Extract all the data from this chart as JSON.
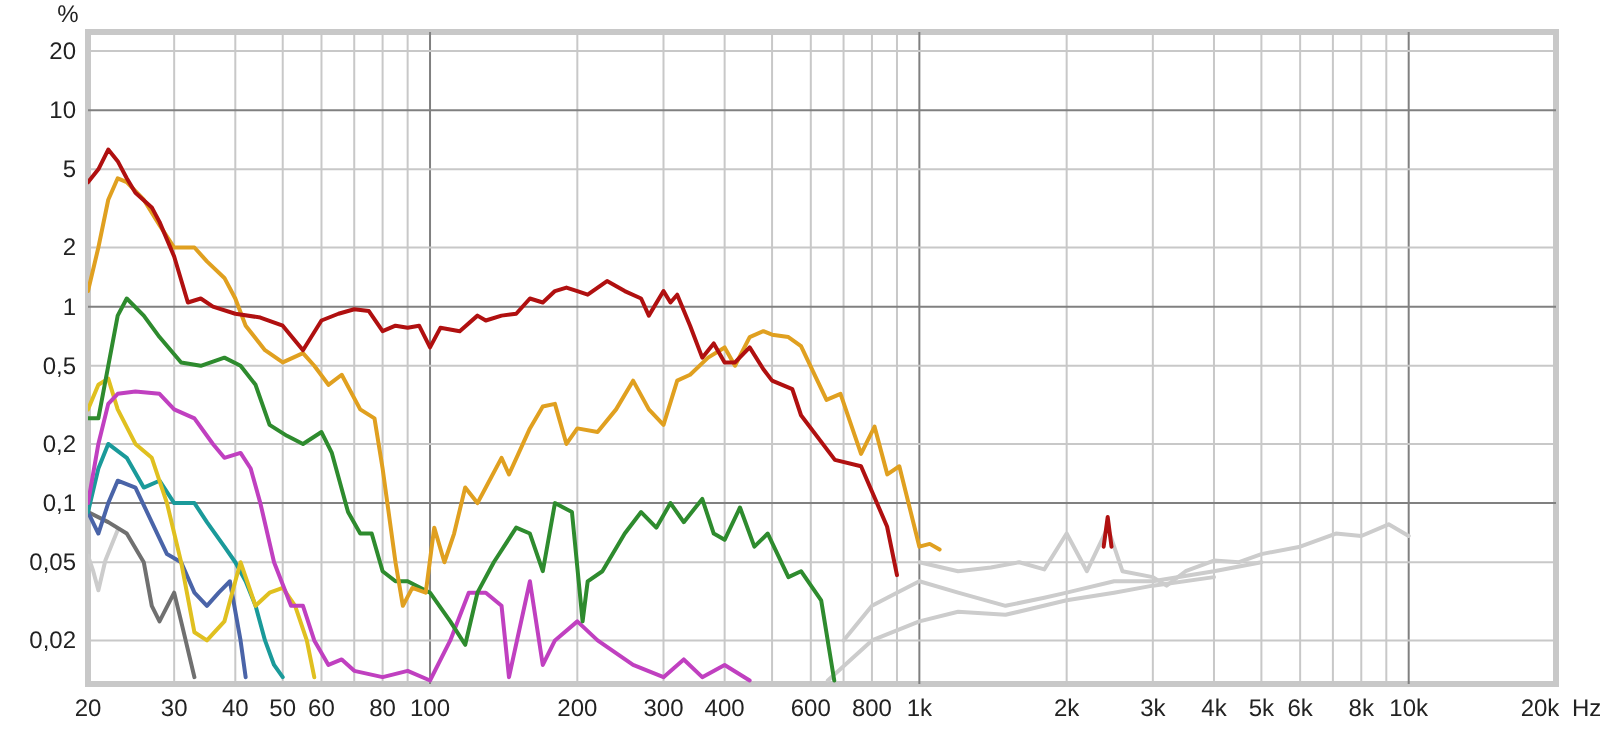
{
  "chart_data": {
    "type": "line",
    "ylabel": "%",
    "log": "xy",
    "grid": true,
    "xlabel": "Hz",
    "marker": "none",
    "line_style": "solid",
    "xlim": [
      20,
      20000
    ],
    "ylim": [
      0.012,
      25
    ],
    "xticks": [
      20,
      30,
      40,
      50,
      60,
      {
        "value": 70,
        "label": null
      },
      80,
      {
        "value": 90,
        "label": null
      },
      100,
      200,
      300,
      400,
      {
        "value": 500,
        "label": null
      },
      600,
      {
        "value": 700,
        "label": null
      },
      800,
      {
        "value": 900,
        "label": null
      },
      {
        "value": 1000,
        "label": "1k"
      },
      {
        "value": 2000,
        "label": "2k"
      },
      {
        "value": 3000,
        "label": "3k"
      },
      {
        "value": 4000,
        "label": "4k"
      },
      {
        "value": 5000,
        "label": "5k"
      },
      {
        "value": 6000,
        "label": "6k"
      },
      {
        "value": 7000,
        "label": null
      },
      {
        "value": 8000,
        "label": "8k"
      },
      {
        "value": 9000,
        "label": null
      },
      {
        "value": 10000,
        "label": "10k"
      },
      {
        "value": 20000,
        "label": "20k"
      }
    ],
    "yticks": [
      {
        "value": 0.02,
        "label": "0,02"
      },
      {
        "value": 0.05,
        "label": "0,05"
      },
      {
        "value": 0.1,
        "label": "0,1"
      },
      {
        "value": 0.2,
        "label": "0,2"
      },
      {
        "value": 0.5,
        "label": "0,5"
      },
      1,
      2,
      5,
      10,
      20
    ],
    "series": [
      {
        "color": "#cccccc",
        "x": [
          20,
          20.5,
          21,
          21.7,
          23
        ],
        "values": [
          0.054,
          0.045,
          0.036,
          0.051,
          0.073
        ]
      },
      {
        "color": "#cccccc",
        "x": [
          1000,
          1200,
          1400,
          1600,
          1800,
          2000,
          2200,
          2426,
          2600,
          3000,
          3200,
          3500,
          4000,
          4500,
          5000,
          6000,
          7100,
          8000,
          9100,
          10000
        ],
        "values": [
          0.05,
          0.045,
          0.047,
          0.05,
          0.046,
          0.07,
          0.045,
          0.075,
          0.045,
          0.042,
          0.038,
          0.045,
          0.051,
          0.05,
          0.055,
          0.06,
          0.07,
          0.068,
          0.078,
          0.068
        ]
      },
      {
        "color": "#cccccc",
        "x": [
          700,
          800,
          900,
          1000,
          1200,
          1500,
          1800,
          2000,
          2500,
          3000,
          4000,
          5000
        ],
        "values": [
          0.02,
          0.03,
          0.035,
          0.04,
          0.035,
          0.03,
          0.033,
          0.035,
          0.04,
          0.04,
          0.045,
          0.05
        ]
      },
      {
        "color": "#cccccc",
        "x": [
          650,
          800,
          1000,
          1200,
          1500,
          2000,
          2500,
          3000,
          4000
        ],
        "values": [
          0.0125,
          0.02,
          0.025,
          0.028,
          0.027,
          0.032,
          0.035,
          0.038,
          0.042
        ]
      },
      {
        "color": "#707070",
        "x": [
          20,
          22,
          24,
          26,
          27,
          28,
          30,
          31,
          33
        ],
        "values": [
          0.09,
          0.08,
          0.07,
          0.05,
          0.03,
          0.025,
          0.035,
          0.025,
          0.013
        ]
      },
      {
        "color": "#4a64a8",
        "x": [
          20,
          21,
          22,
          23,
          25,
          27,
          29,
          31,
          33,
          35,
          37,
          39,
          41,
          42
        ],
        "values": [
          0.09,
          0.07,
          0.1,
          0.13,
          0.12,
          0.08,
          0.055,
          0.05,
          0.035,
          0.03,
          0.035,
          0.04,
          0.02,
          0.013
        ]
      },
      {
        "color": "#1a9a9a",
        "x": [
          20,
          21,
          22,
          24,
          26,
          28,
          30,
          33,
          35,
          38,
          40,
          42,
          44,
          46,
          48,
          50
        ],
        "values": [
          0.09,
          0.15,
          0.2,
          0.17,
          0.12,
          0.13,
          0.1,
          0.1,
          0.08,
          0.06,
          0.05,
          0.04,
          0.03,
          0.02,
          0.015,
          0.013
        ]
      },
      {
        "color": "#e0c020",
        "x": [
          20,
          21,
          22,
          23,
          25,
          27,
          29,
          31,
          33,
          35,
          38,
          40,
          41,
          44,
          47,
          50,
          53,
          56,
          58
        ],
        "values": [
          0.3,
          0.4,
          0.43,
          0.3,
          0.2,
          0.17,
          0.1,
          0.05,
          0.022,
          0.02,
          0.025,
          0.04,
          0.05,
          0.03,
          0.035,
          0.037,
          0.03,
          0.02,
          0.013
        ]
      },
      {
        "color": "#c040c0",
        "x": [
          20,
          21,
          22,
          23,
          25,
          28,
          30,
          33,
          36,
          38,
          41,
          43,
          45,
          48,
          52,
          55,
          58,
          62,
          66,
          70,
          80,
          90,
          100,
          110,
          120,
          130,
          140,
          145,
          160,
          170,
          180,
          200,
          220,
          260,
          300,
          330,
          360,
          400,
          450
        ],
        "values": [
          0.1,
          0.2,
          0.32,
          0.36,
          0.37,
          0.36,
          0.3,
          0.27,
          0.2,
          0.17,
          0.18,
          0.15,
          0.1,
          0.05,
          0.03,
          0.03,
          0.02,
          0.015,
          0.016,
          0.014,
          0.013,
          0.014,
          0.0125,
          0.02,
          0.035,
          0.035,
          0.03,
          0.013,
          0.04,
          0.015,
          0.02,
          0.025,
          0.02,
          0.015,
          0.013,
          0.016,
          0.013,
          0.015,
          0.0125
        ]
      },
      {
        "color": "#2e8b2e",
        "x": [
          20,
          21,
          22,
          23,
          24,
          26,
          28,
          31,
          34,
          38,
          41,
          44,
          47,
          51,
          55,
          60,
          63,
          68,
          72,
          76,
          80,
          85,
          90,
          100,
          110,
          118,
          125,
          135,
          150,
          160,
          170,
          180,
          195,
          205,
          210,
          225,
          250,
          270,
          290,
          310,
          330,
          360,
          380,
          400,
          430,
          460,
          490,
          540,
          573,
          630,
          670
        ],
        "values": [
          0.27,
          0.27,
          0.5,
          0.9,
          1.1,
          0.9,
          0.7,
          0.52,
          0.5,
          0.55,
          0.5,
          0.4,
          0.25,
          0.22,
          0.2,
          0.23,
          0.18,
          0.09,
          0.07,
          0.07,
          0.045,
          0.04,
          0.04,
          0.035,
          0.025,
          0.019,
          0.035,
          0.05,
          0.075,
          0.07,
          0.045,
          0.1,
          0.09,
          0.025,
          0.04,
          0.045,
          0.07,
          0.09,
          0.075,
          0.1,
          0.08,
          0.105,
          0.07,
          0.065,
          0.095,
          0.06,
          0.07,
          0.042,
          0.045,
          0.032,
          0.0125
        ]
      },
      {
        "color": "#e0a020",
        "x": [
          20,
          21,
          22,
          23,
          24,
          26,
          28,
          30,
          33,
          35,
          38,
          40,
          42,
          46,
          50,
          55,
          58,
          62,
          66,
          72,
          77,
          80,
          85,
          88,
          92,
          98,
          102,
          107,
          112,
          118,
          125,
          130,
          140,
          145,
          160,
          170,
          180,
          190,
          200,
          220,
          240,
          260,
          280,
          300,
          320,
          340,
          370,
          400,
          420,
          450,
          480,
          500,
          540,
          573,
          646,
          690,
          760,
          810,
          860,
          910,
          1000,
          1050,
          1100
        ],
        "values": [
          1.2,
          2,
          3.5,
          4.5,
          4.3,
          3.5,
          2.6,
          2,
          2,
          1.7,
          1.4,
          1.1,
          0.8,
          0.6,
          0.52,
          0.58,
          0.5,
          0.4,
          0.45,
          0.3,
          0.27,
          0.15,
          0.05,
          0.03,
          0.037,
          0.035,
          0.075,
          0.05,
          0.07,
          0.12,
          0.1,
          0.12,
          0.17,
          0.14,
          0.24,
          0.31,
          0.32,
          0.2,
          0.24,
          0.23,
          0.3,
          0.42,
          0.3,
          0.25,
          0.42,
          0.45,
          0.55,
          0.62,
          0.5,
          0.7,
          0.75,
          0.72,
          0.7,
          0.63,
          0.335,
          0.36,
          0.178,
          0.245,
          0.14,
          0.154,
          0.06,
          0.062,
          0.058
        ]
      },
      {
        "color": "#b01010",
        "x": [
          20,
          21,
          22,
          23,
          24,
          25,
          27,
          28,
          30,
          32,
          34,
          36,
          40,
          45,
          50,
          55,
          60,
          65,
          70,
          75,
          80,
          85,
          90,
          95,
          100,
          105,
          115,
          125,
          130,
          140,
          150,
          160,
          170,
          180,
          190,
          200,
          210,
          230,
          250,
          270,
          280,
          300,
          310,
          320,
          340,
          360,
          380,
          400,
          420,
          450,
          480,
          500,
          550,
          573,
          672,
          760,
          859,
          900,
          1500,
          2380,
          2426,
          2470
        ],
        "values": [
          4.3,
          5,
          6.3,
          5.5,
          4.5,
          3.8,
          3.2,
          2.7,
          1.8,
          1.05,
          1.1,
          1,
          0.92,
          0.88,
          0.8,
          0.6,
          0.85,
          0.92,
          0.97,
          0.95,
          0.75,
          0.8,
          0.78,
          0.8,
          0.62,
          0.78,
          0.75,
          0.9,
          0.85,
          0.9,
          0.92,
          1.1,
          1.05,
          1.2,
          1.25,
          1.2,
          1.15,
          1.35,
          1.2,
          1.1,
          0.9,
          1.2,
          1.05,
          1.15,
          0.8,
          0.55,
          0.65,
          0.52,
          0.52,
          0.62,
          0.48,
          0.42,
          0.38,
          0.28,
          0.166,
          0.154,
          0.076,
          0.043,
          null,
          0.06,
          0.085,
          0.06
        ]
      }
    ]
  }
}
